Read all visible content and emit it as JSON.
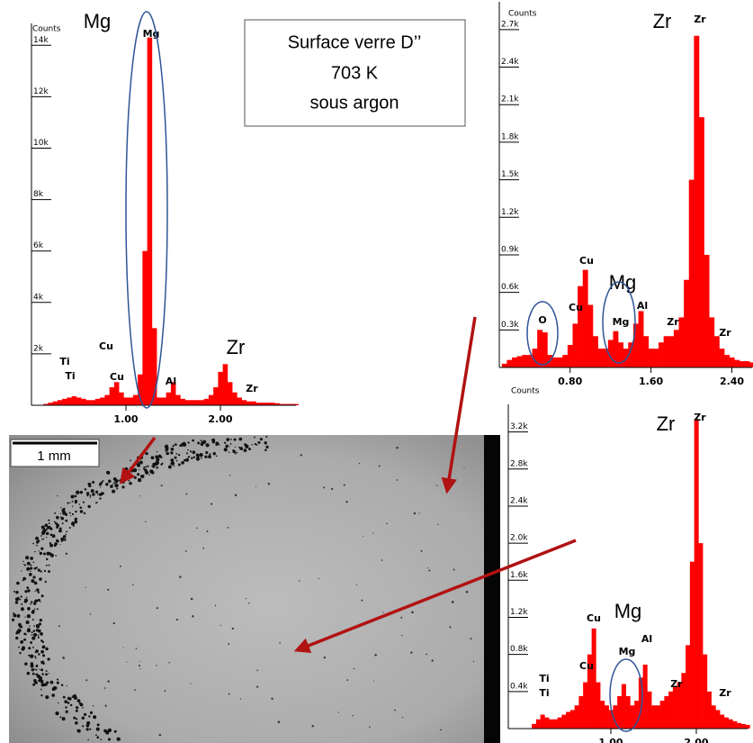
{
  "caption_box": {
    "lines": [
      "Surface verre D’’",
      "703 K",
      "sous argon"
    ]
  },
  "micrograph": {
    "scale_bar": "1 mm"
  },
  "chart_data": [
    {
      "type": "spectrum",
      "y_label": "Counts",
      "color": "#ff0000",
      "x": [
        0,
        0.05,
        0.1,
        0.15,
        0.2,
        0.25,
        0.3,
        0.35,
        0.4,
        0.45,
        0.5,
        0.55,
        0.6,
        0.65,
        0.7,
        0.75,
        0.8,
        0.85,
        0.9,
        0.95,
        1,
        1.05,
        1.1,
        1.15,
        1.2,
        1.25,
        1.3,
        1.35,
        1.4,
        1.45,
        1.5,
        1.55,
        1.6,
        1.65,
        1.7,
        1.75,
        1.8,
        1.85,
        1.9,
        1.95,
        2,
        2.05,
        2.1,
        2.15,
        2.2,
        2.25,
        2.3,
        2.35,
        2.4,
        2.45,
        2.5,
        2.55,
        2.6,
        2.65,
        2.7,
        2.75,
        2.8
      ],
      "values": [
        0,
        0,
        0,
        50,
        100,
        150,
        200,
        250,
        300,
        350,
        300,
        250,
        200,
        200,
        250,
        300,
        400,
        700,
        900,
        500,
        300,
        300,
        400,
        1200,
        6000,
        14300,
        3000,
        300,
        300,
        500,
        900,
        400,
        250,
        200,
        200,
        200,
        200,
        250,
        400,
        700,
        1300,
        1600,
        900,
        500,
        300,
        200,
        150,
        150,
        100,
        100,
        100,
        100,
        80,
        50,
        50,
        50,
        50
      ],
      "xlim": [
        0,
        2.8
      ],
      "xticks": [
        {
          "value": 1,
          "label": "1.00"
        },
        {
          "value": 2,
          "label": "2.00"
        }
      ],
      "ylim": [
        0,
        14500
      ],
      "yticks": [
        {
          "value": 2000,
          "label": "2k"
        },
        {
          "value": 4000,
          "label": "4k"
        },
        {
          "value": 6000,
          "label": "6k"
        },
        {
          "value": 8000,
          "label": "8k"
        },
        {
          "value": 10000,
          "label": "10k"
        },
        {
          "value": 12000,
          "label": "12k"
        },
        {
          "value": 14000,
          "label": "14k"
        }
      ],
      "peak_labels": [
        "Mg",
        "Cu",
        "Cu",
        "Ti",
        "Ti",
        "Al",
        "Zr"
      ],
      "element_labels": [
        "Mg",
        "Zr"
      ]
    },
    {
      "type": "spectrum",
      "y_label": "Counts",
      "color": "#ff0000",
      "x": [
        0.1,
        0.15,
        0.2,
        0.25,
        0.3,
        0.35,
        0.4,
        0.45,
        0.5,
        0.55,
        0.6,
        0.65,
        0.7,
        0.75,
        0.8,
        0.85,
        0.9,
        0.95,
        1,
        1.05,
        1.1,
        1.15,
        1.2,
        1.25,
        1.3,
        1.35,
        1.4,
        1.45,
        1.5,
        1.55,
        1.6,
        1.65,
        1.7,
        1.75,
        1.8,
        1.85,
        1.9,
        1.95,
        2,
        2.05,
        2.1,
        2.15,
        2.2,
        2.25,
        2.3,
        2.35,
        2.4,
        2.45,
        2.5,
        2.55,
        2.6
      ],
      "values": [
        0,
        30,
        60,
        80,
        90,
        100,
        100,
        150,
        300,
        280,
        100,
        80,
        80,
        100,
        180,
        350,
        650,
        780,
        500,
        250,
        150,
        150,
        220,
        290,
        200,
        150,
        200,
        350,
        450,
        250,
        150,
        150,
        200,
        250,
        250,
        300,
        400,
        700,
        1500,
        2650,
        2000,
        900,
        400,
        250,
        150,
        100,
        80,
        60,
        50,
        50,
        40
      ],
      "xlim": [
        0.1,
        2.6
      ],
      "xticks": [
        {
          "value": 0.8,
          "label": "0.80"
        },
        {
          "value": 1.6,
          "label": "1.60"
        },
        {
          "value": 2.4,
          "label": "2.40"
        }
      ],
      "ylim": [
        0,
        2850
      ],
      "yticks": [
        {
          "value": 300,
          "label": "0.3k"
        },
        {
          "value": 600,
          "label": "0.6k"
        },
        {
          "value": 900,
          "label": "0.9k"
        },
        {
          "value": 1200,
          "label": "1.2k"
        },
        {
          "value": 1500,
          "label": "1.5k"
        },
        {
          "value": 1800,
          "label": "1.8k"
        },
        {
          "value": 2100,
          "label": "2.1k"
        },
        {
          "value": 2400,
          "label": "2.4k"
        },
        {
          "value": 2700,
          "label": "2.7k"
        }
      ],
      "peak_labels": [
        "Zr",
        "Cu",
        "Cu",
        "O",
        "Mg",
        "Al",
        "Zr",
        "Zr"
      ],
      "element_labels": [
        "Zr",
        "Mg"
      ]
    },
    {
      "type": "spectrum",
      "y_label": "Counts",
      "color": "#ff0000",
      "x": [
        0,
        0.05,
        0.1,
        0.15,
        0.2,
        0.25,
        0.3,
        0.35,
        0.4,
        0.45,
        0.5,
        0.55,
        0.6,
        0.65,
        0.7,
        0.75,
        0.8,
        0.85,
        0.9,
        0.95,
        1,
        1.05,
        1.1,
        1.15,
        1.2,
        1.25,
        1.3,
        1.35,
        1.4,
        1.45,
        1.5,
        1.55,
        1.6,
        1.65,
        1.7,
        1.75,
        1.8,
        1.85,
        1.9,
        1.95,
        2,
        2.05,
        2.1,
        2.15,
        2.2,
        2.25,
        2.3,
        2.35,
        2.4,
        2.45,
        2.5,
        2.55,
        2.6
      ],
      "values": [
        0,
        0,
        50,
        100,
        150,
        120,
        100,
        100,
        120,
        150,
        180,
        200,
        250,
        350,
        500,
        800,
        1080,
        500,
        300,
        250,
        200,
        250,
        350,
        480,
        350,
        250,
        300,
        550,
        690,
        400,
        250,
        250,
        300,
        350,
        400,
        450,
        500,
        600,
        900,
        1800,
        3340,
        2000,
        800,
        400,
        250,
        200,
        150,
        120,
        100,
        80,
        60,
        50,
        40
      ],
      "xlim": [
        -0.2,
        2.6
      ],
      "xticks": [
        {
          "value": 1,
          "label": "1.00"
        },
        {
          "value": 2,
          "label": "2.00"
        }
      ],
      "ylim": [
        0,
        3400
      ],
      "yticks": [
        {
          "value": 400,
          "label": "0.4k"
        },
        {
          "value": 800,
          "label": "0.8k"
        },
        {
          "value": 1200,
          "label": "1.2k"
        },
        {
          "value": 1600,
          "label": "1.6k"
        },
        {
          "value": 2000,
          "label": "2.0k"
        },
        {
          "value": 2400,
          "label": "2.4k"
        },
        {
          "value": 2800,
          "label": "2.8k"
        },
        {
          "value": 3200,
          "label": "3.2k"
        }
      ],
      "peak_labels": [
        "Zr",
        "Cu",
        "Cu",
        "Mg",
        "Al",
        "Ti",
        "Ti",
        "Zr",
        "Zr"
      ],
      "element_labels": [
        "Zr",
        "Mg"
      ]
    }
  ]
}
